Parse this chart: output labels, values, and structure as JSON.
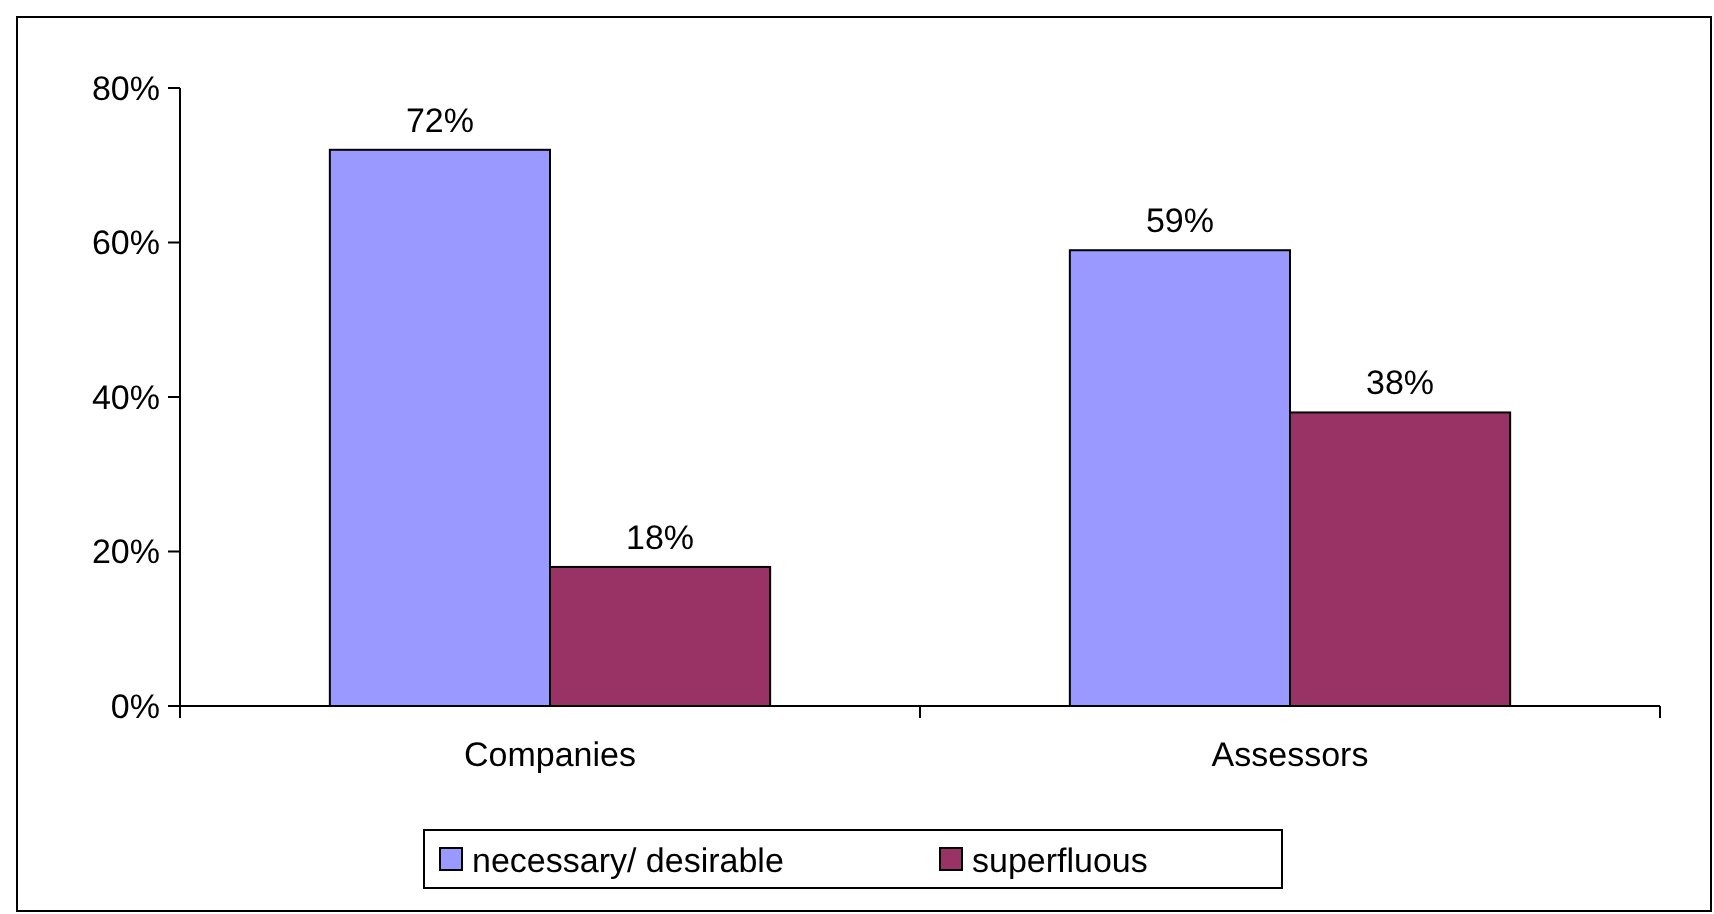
{
  "chart_data": {
    "type": "bar",
    "categories": [
      "Companies",
      "Assessors"
    ],
    "series": [
      {
        "name": "necessary/ desirable",
        "color": "#9999ff",
        "values": [
          72,
          59
        ]
      },
      {
        "name": "superfluous",
        "color": "#993366",
        "values": [
          18,
          38
        ]
      }
    ],
    "ylim": [
      0,
      80
    ],
    "yticks": [
      {
        "value": 0,
        "label": "0%"
      },
      {
        "value": 20,
        "label": "20%"
      },
      {
        "value": 40,
        "label": "40%"
      },
      {
        "value": 60,
        "label": "60%"
      },
      {
        "value": 80,
        "label": "80%"
      }
    ],
    "value_labels": [
      [
        "72%",
        "59%"
      ],
      [
        "18%",
        "38%"
      ]
    ],
    "legend": "bottom",
    "grid": false
  }
}
